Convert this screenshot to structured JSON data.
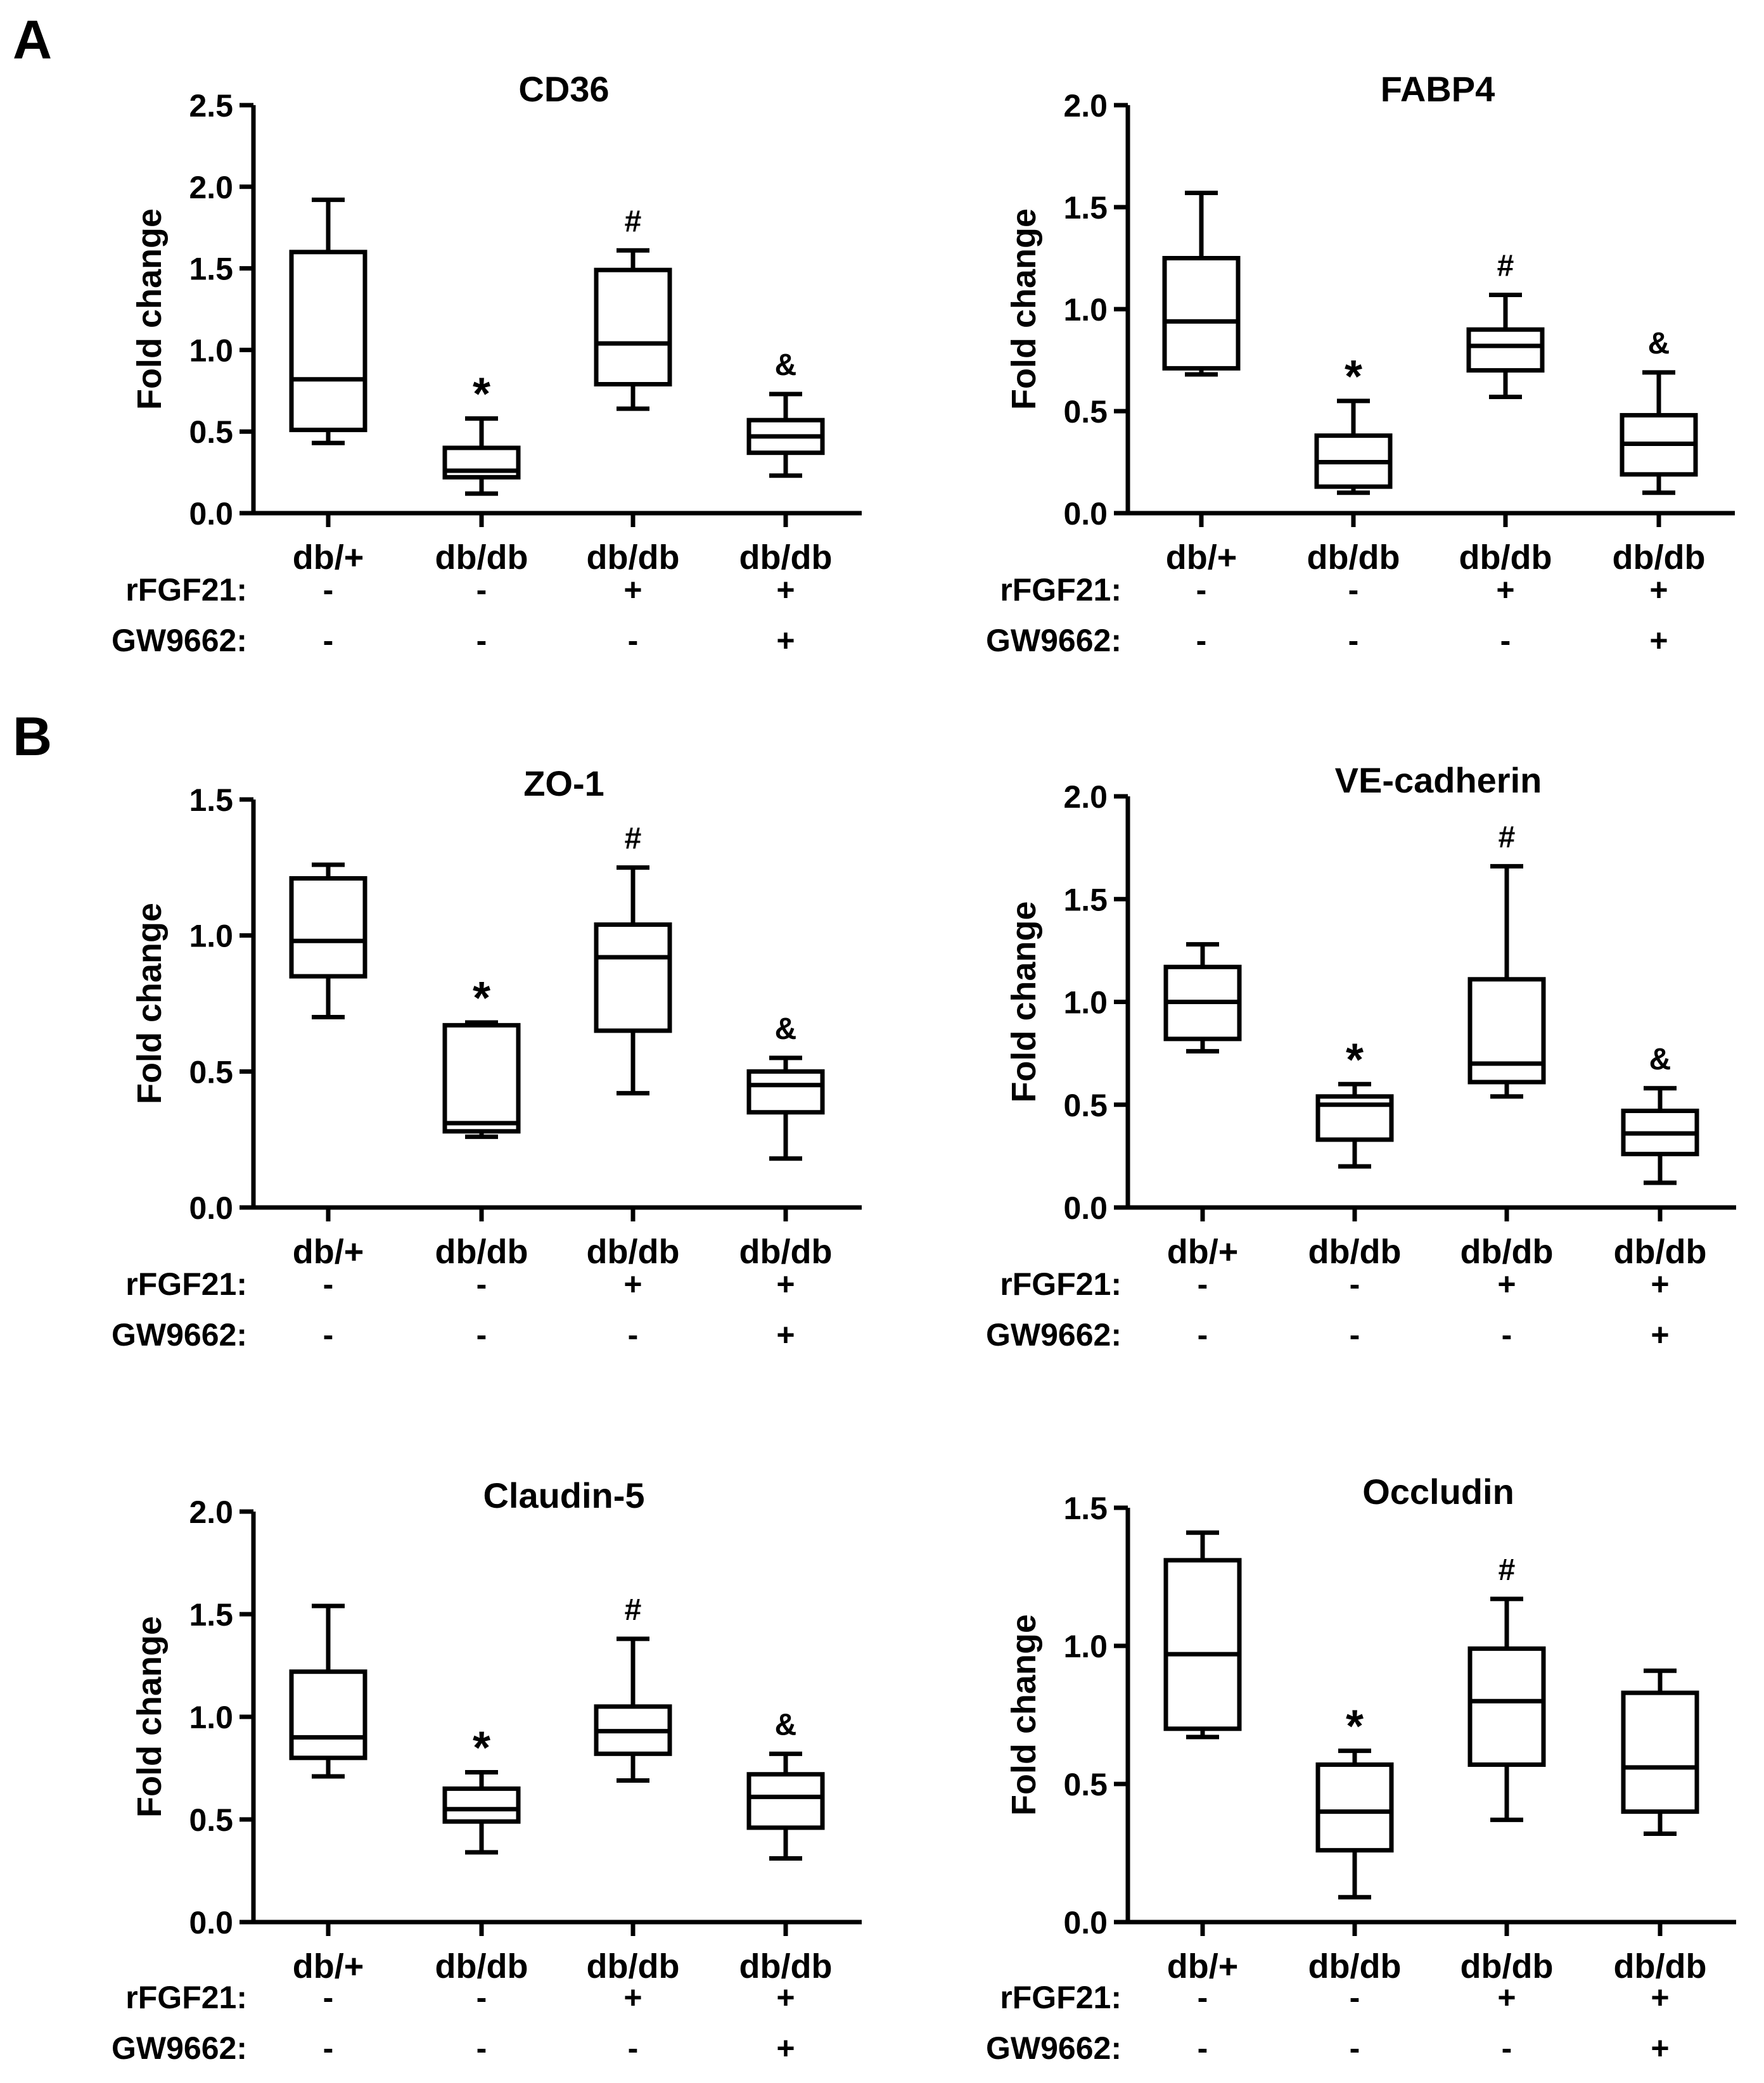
{
  "panel_labels": [
    "A",
    "B"
  ],
  "treatment_rows": [
    {
      "label": "rFGF21:",
      "values": [
        "-",
        "-",
        "+",
        "+"
      ]
    },
    {
      "label": "GW9662:",
      "values": [
        "-",
        "-",
        "-",
        "+"
      ]
    }
  ],
  "chart_data": [
    {
      "type": "box",
      "title": "CD36",
      "ylabel": "Fold change",
      "ylim": [
        0,
        2.5
      ],
      "yticks": [
        "0.0",
        "0.5",
        "1.0",
        "1.5",
        "2.0",
        "2.5"
      ],
      "categories": [
        "db/+",
        "db/db",
        "db/db",
        "db/db"
      ],
      "boxes": [
        {
          "min": 0.43,
          "q1": 0.51,
          "median": 0.82,
          "q3": 1.6,
          "max": 1.92,
          "sig": ""
        },
        {
          "min": 0.12,
          "q1": 0.22,
          "median": 0.26,
          "q3": 0.4,
          "max": 0.58,
          "sig": "*"
        },
        {
          "min": 0.64,
          "q1": 0.79,
          "median": 1.04,
          "q3": 1.49,
          "max": 1.61,
          "sig": "#"
        },
        {
          "min": 0.23,
          "q1": 0.37,
          "median": 0.47,
          "q3": 0.57,
          "max": 0.73,
          "sig": "&"
        }
      ]
    },
    {
      "type": "box",
      "title": "FABP4",
      "ylabel": "Fold change",
      "ylim": [
        0,
        2.0
      ],
      "yticks": [
        "0.0",
        "0.5",
        "1.0",
        "1.5",
        "2.0"
      ],
      "categories": [
        "db/+",
        "db/db",
        "db/db",
        "db/db"
      ],
      "boxes": [
        {
          "min": 0.68,
          "q1": 0.71,
          "median": 0.94,
          "q3": 1.25,
          "max": 1.57,
          "sig": ""
        },
        {
          "min": 0.1,
          "q1": 0.13,
          "median": 0.25,
          "q3": 0.38,
          "max": 0.55,
          "sig": "*"
        },
        {
          "min": 0.57,
          "q1": 0.7,
          "median": 0.82,
          "q3": 0.9,
          "max": 1.07,
          "sig": "#"
        },
        {
          "min": 0.1,
          "q1": 0.19,
          "median": 0.34,
          "q3": 0.48,
          "max": 0.69,
          "sig": "&"
        }
      ]
    },
    {
      "type": "box",
      "title": "ZO-1",
      "ylabel": "Fold change",
      "ylim": [
        0,
        1.5
      ],
      "yticks": [
        "0.0",
        "0.5",
        "1.0",
        "1.5"
      ],
      "categories": [
        "db/+",
        "db/db",
        "db/db",
        "db/db"
      ],
      "boxes": [
        {
          "min": 0.7,
          "q1": 0.85,
          "median": 0.98,
          "q3": 1.21,
          "max": 1.26,
          "sig": ""
        },
        {
          "min": 0.26,
          "q1": 0.28,
          "median": 0.31,
          "q3": 0.67,
          "max": 0.68,
          "sig": "*"
        },
        {
          "min": 0.42,
          "q1": 0.65,
          "median": 0.92,
          "q3": 1.04,
          "max": 1.25,
          "sig": "#"
        },
        {
          "min": 0.18,
          "q1": 0.35,
          "median": 0.45,
          "q3": 0.5,
          "max": 0.55,
          "sig": "&"
        }
      ]
    },
    {
      "type": "box",
      "title": "VE-cadherin",
      "ylabel": "Fold change",
      "ylim": [
        0,
        2.0
      ],
      "yticks": [
        "0.0",
        "0.5",
        "1.0",
        "1.5",
        "2.0"
      ],
      "categories": [
        "db/+",
        "db/db",
        "db/db",
        "db/db"
      ],
      "boxes": [
        {
          "min": 0.76,
          "q1": 0.82,
          "median": 1.0,
          "q3": 1.17,
          "max": 1.28,
          "sig": ""
        },
        {
          "min": 0.2,
          "q1": 0.33,
          "median": 0.5,
          "q3": 0.54,
          "max": 0.6,
          "sig": "*"
        },
        {
          "min": 0.54,
          "q1": 0.61,
          "median": 0.7,
          "q3": 1.11,
          "max": 1.66,
          "sig": "#"
        },
        {
          "min": 0.12,
          "q1": 0.26,
          "median": 0.36,
          "q3": 0.47,
          "max": 0.58,
          "sig": "&"
        }
      ]
    },
    {
      "type": "box",
      "title": "Claudin-5",
      "ylabel": "Fold change",
      "ylim": [
        0,
        2.0
      ],
      "yticks": [
        "0.0",
        "0.5",
        "1.0",
        "1.5",
        "2.0"
      ],
      "categories": [
        "db/+",
        "db/db",
        "db/db",
        "db/db"
      ],
      "boxes": [
        {
          "min": 0.71,
          "q1": 0.8,
          "median": 0.9,
          "q3": 1.22,
          "max": 1.54,
          "sig": ""
        },
        {
          "min": 0.34,
          "q1": 0.49,
          "median": 0.55,
          "q3": 0.65,
          "max": 0.73,
          "sig": "*"
        },
        {
          "min": 0.69,
          "q1": 0.82,
          "median": 0.93,
          "q3": 1.05,
          "max": 1.38,
          "sig": "#"
        },
        {
          "min": 0.31,
          "q1": 0.46,
          "median": 0.61,
          "q3": 0.72,
          "max": 0.82,
          "sig": "&"
        }
      ]
    },
    {
      "type": "box",
      "title": "Occludin",
      "ylabel": "Fold change",
      "ylim": [
        0,
        1.5
      ],
      "yticks": [
        "0.0",
        "0.5",
        "1.0",
        "1.5"
      ],
      "categories": [
        "db/+",
        "db/db",
        "db/db",
        "db/db"
      ],
      "boxes": [
        {
          "min": 0.67,
          "q1": 0.7,
          "median": 0.97,
          "q3": 1.31,
          "max": 1.41,
          "sig": ""
        },
        {
          "min": 0.09,
          "q1": 0.26,
          "median": 0.4,
          "q3": 0.57,
          "max": 0.62,
          "sig": "*"
        },
        {
          "min": 0.37,
          "q1": 0.57,
          "median": 0.8,
          "q3": 0.99,
          "max": 1.17,
          "sig": "#"
        },
        {
          "min": 0.32,
          "q1": 0.4,
          "median": 0.56,
          "q3": 0.83,
          "max": 0.91,
          "sig": ""
        }
      ]
    }
  ]
}
